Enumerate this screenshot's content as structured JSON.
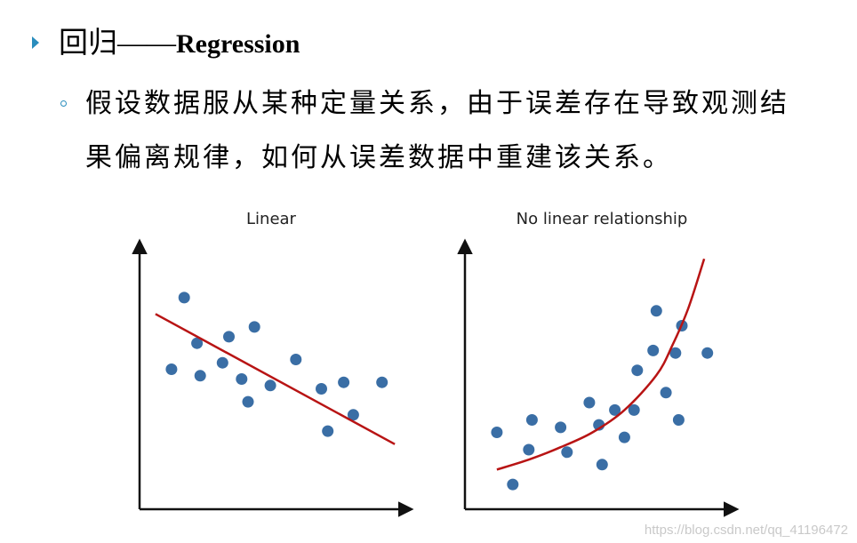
{
  "heading": {
    "chinese": "回归",
    "dash": "——",
    "english": "Regression"
  },
  "body": {
    "line1": "假设数据服从某种定量关系，由于误差存在导致观测结",
    "line2": "果偏离规律，如何从误差数据中重建该关系。"
  },
  "colors": {
    "bullet": "#2a8dbd",
    "points": "#3a6ea5",
    "fit_line": "#b81414",
    "axis": "#111111"
  },
  "chart_data": [
    {
      "type": "scatter",
      "title": "Linear",
      "xlabel": "",
      "ylabel": "",
      "fit": "linear",
      "points": [
        [
          1.0,
          4.3
        ],
        [
          1.4,
          6.5
        ],
        [
          1.8,
          5.1
        ],
        [
          1.9,
          4.1
        ],
        [
          2.6,
          4.5
        ],
        [
          2.8,
          5.3
        ],
        [
          3.2,
          4.0
        ],
        [
          3.4,
          3.3
        ],
        [
          3.6,
          5.6
        ],
        [
          4.1,
          3.8
        ],
        [
          4.9,
          4.6
        ],
        [
          5.7,
          3.7
        ],
        [
          5.9,
          2.4
        ],
        [
          6.4,
          3.9
        ],
        [
          6.7,
          2.9
        ],
        [
          7.6,
          3.9
        ]
      ],
      "line": [
        [
          0.5,
          6.0
        ],
        [
          8.0,
          2.0
        ]
      ],
      "xlim": [
        0,
        8.5
      ],
      "ylim": [
        0,
        8
      ]
    },
    {
      "type": "scatter",
      "title": "No linear relationship",
      "xlabel": "",
      "ylabel": "",
      "fit": "curve",
      "points": [
        [
          1.0,
          3.1
        ],
        [
          1.5,
          1.0
        ],
        [
          2.0,
          2.4
        ],
        [
          2.1,
          3.6
        ],
        [
          3.0,
          3.3
        ],
        [
          3.2,
          2.3
        ],
        [
          3.9,
          4.3
        ],
        [
          4.2,
          3.4
        ],
        [
          4.3,
          1.8
        ],
        [
          4.7,
          4.0
        ],
        [
          5.0,
          2.9
        ],
        [
          5.3,
          4.0
        ],
        [
          5.4,
          5.6
        ],
        [
          5.9,
          6.4
        ],
        [
          6.0,
          8.0
        ],
        [
          6.3,
          4.7
        ],
        [
          6.6,
          6.3
        ],
        [
          6.7,
          3.6
        ],
        [
          6.8,
          7.4
        ],
        [
          7.6,
          6.3
        ]
      ],
      "curve": [
        [
          1.0,
          1.6
        ],
        [
          2.0,
          2.0
        ],
        [
          3.0,
          2.5
        ],
        [
          4.0,
          3.1
        ],
        [
          5.0,
          4.0
        ],
        [
          6.0,
          5.4
        ],
        [
          6.5,
          6.6
        ],
        [
          7.0,
          8.1
        ],
        [
          7.5,
          10.1
        ]
      ],
      "xlim": [
        0,
        8.5
      ],
      "ylim": [
        0,
        10.5
      ]
    }
  ],
  "watermark": "https://blog.csdn.net/qq_41196472"
}
